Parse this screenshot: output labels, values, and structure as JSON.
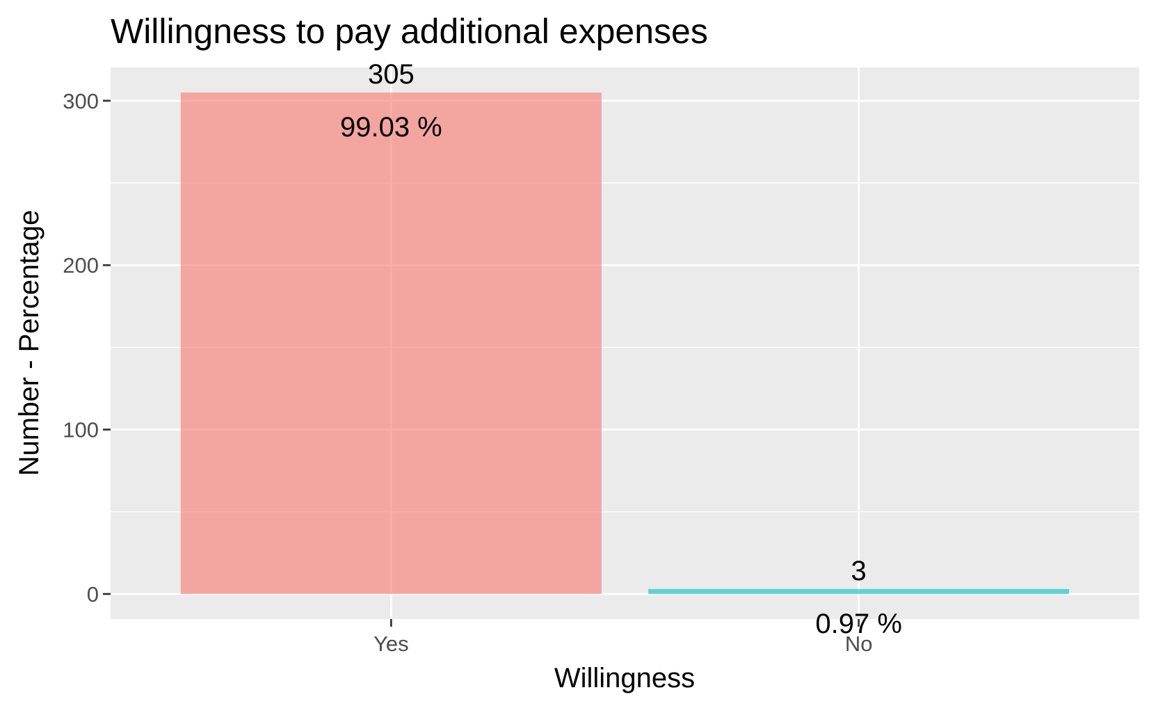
{
  "chart_data": {
    "type": "bar",
    "title": "Willingness to pay additional expenses",
    "xlabel": "Willingness",
    "ylabel": "Number - Percentage",
    "categories": [
      "Yes",
      "No"
    ],
    "values": [
      305,
      3
    ],
    "count_labels": [
      "305",
      "3"
    ],
    "percent_labels": [
      "99.03 %",
      "0.97 %"
    ],
    "colors": [
      "#F8766D",
      "#00BFC4"
    ],
    "yticks": [
      0,
      100,
      200,
      300
    ],
    "ylim": [
      -15.25,
      320.25
    ],
    "grid": true,
    "legend": "none",
    "panel_background": "#EBEBEB"
  }
}
